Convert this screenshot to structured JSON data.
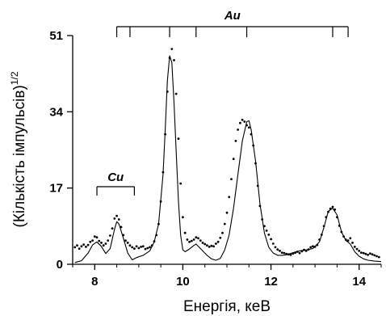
{
  "chart_data": {
    "type": "line",
    "title": "",
    "xlabel": "Енергія, кеВ",
    "ylabel_main": "(Кількість імпульсів)",
    "ylabel_sup": "1/2",
    "xlim": [
      7.5,
      14.5
    ],
    "ylim": [
      0,
      51
    ],
    "xticks": [
      8,
      10,
      12,
      14
    ],
    "xtick_labels": [
      "8",
      "10",
      "12",
      "14"
    ],
    "yticks": [
      0,
      17,
      34,
      51
    ],
    "ytick_labels": [
      "0",
      "17",
      "34",
      "51"
    ],
    "grid": false,
    "colors": {
      "axis": "#000000",
      "series": "#000000"
    },
    "annotations": [
      {
        "label": "Cu",
        "lines": [
          8.05,
          8.9
        ]
      },
      {
        "label": "Au",
        "lines": [
          8.5,
          8.8,
          9.7,
          10.3,
          11.45,
          13.4,
          13.75
        ]
      }
    ],
    "series": [
      {
        "style": "line",
        "x": [
          7.55,
          7.7,
          7.85,
          7.95,
          8.05,
          8.15,
          8.25,
          8.35,
          8.45,
          8.5,
          8.55,
          8.65,
          8.75,
          8.85,
          8.95,
          9.1,
          9.25,
          9.35,
          9.45,
          9.55,
          9.6,
          9.65,
          9.7,
          9.75,
          9.8,
          9.85,
          9.9,
          9.95,
          10.0,
          10.05,
          10.15,
          10.25,
          10.3,
          10.35,
          10.45,
          10.55,
          10.65,
          10.75,
          10.85,
          10.95,
          11.05,
          11.15,
          11.25,
          11.35,
          11.45,
          11.5,
          11.55,
          11.65,
          11.75,
          11.85,
          11.95,
          12.05,
          12.15,
          12.25,
          12.35,
          12.5,
          12.65,
          12.8,
          12.95,
          13.1,
          13.2,
          13.3,
          13.4,
          13.5,
          13.6,
          13.7,
          13.8,
          13.9,
          14.0,
          14.1,
          14.2,
          14.35,
          14.5
        ],
        "y": [
          0.4,
          0.8,
          2.5,
          4.3,
          5.0,
          4.0,
          2.4,
          3.5,
          7.8,
          9.5,
          9.0,
          5.8,
          2.5,
          1.0,
          1.5,
          2.0,
          3.0,
          5.0,
          9.0,
          20.0,
          30.0,
          41.0,
          46.5,
          45.0,
          36.0,
          25.0,
          14.0,
          6.5,
          3.2,
          2.8,
          3.4,
          4.2,
          4.5,
          4.0,
          3.0,
          2.0,
          1.2,
          0.9,
          1.3,
          3.2,
          6.5,
          12.5,
          20.0,
          27.5,
          31.8,
          32.0,
          30.0,
          23.0,
          13.5,
          7.0,
          3.8,
          2.5,
          2.0,
          2.0,
          2.1,
          2.6,
          3.0,
          3.2,
          3.5,
          5.0,
          8.2,
          11.8,
          12.5,
          11.0,
          7.2,
          5.3,
          4.5,
          2.8,
          1.8,
          1.2,
          0.9,
          0.7,
          0.6
        ]
      },
      {
        "style": "points",
        "x": [
          7.55,
          7.6,
          7.65,
          7.7,
          7.75,
          7.8,
          7.85,
          7.9,
          7.95,
          8.0,
          8.05,
          8.1,
          8.15,
          8.2,
          8.25,
          8.3,
          8.35,
          8.4,
          8.45,
          8.5,
          8.55,
          8.6,
          8.65,
          8.7,
          8.75,
          8.8,
          8.85,
          8.9,
          8.95,
          9.0,
          9.05,
          9.1,
          9.15,
          9.2,
          9.25,
          9.3,
          9.35,
          9.4,
          9.45,
          9.5,
          9.55,
          9.6,
          9.65,
          9.7,
          9.75,
          9.8,
          9.85,
          9.9,
          9.95,
          10.0,
          10.05,
          10.1,
          10.15,
          10.2,
          10.25,
          10.3,
          10.35,
          10.4,
          10.45,
          10.5,
          10.55,
          10.6,
          10.65,
          10.7,
          10.75,
          10.8,
          10.85,
          10.9,
          10.95,
          11.0,
          11.05,
          11.1,
          11.15,
          11.2,
          11.25,
          11.3,
          11.35,
          11.4,
          11.45,
          11.5,
          11.55,
          11.6,
          11.65,
          11.7,
          11.75,
          11.8,
          11.85,
          11.9,
          11.95,
          12.0,
          12.05,
          12.1,
          12.15,
          12.2,
          12.25,
          12.3,
          12.35,
          12.4,
          12.45,
          12.5,
          12.55,
          12.6,
          12.65,
          12.7,
          12.75,
          12.8,
          12.85,
          12.9,
          12.95,
          13.0,
          13.05,
          13.1,
          13.15,
          13.2,
          13.25,
          13.3,
          13.35,
          13.4,
          13.45,
          13.5,
          13.55,
          13.6,
          13.65,
          13.7,
          13.75,
          13.8,
          13.85,
          13.9,
          13.95,
          14.0,
          14.05,
          14.1,
          14.15,
          14.2,
          14.25,
          14.3,
          14.35,
          14.4,
          14.45
        ],
        "y": [
          3.8,
          4.2,
          3.5,
          4.0,
          4.4,
          3.9,
          4.3,
          5.0,
          5.3,
          6.2,
          6.0,
          5.2,
          4.8,
          4.2,
          4.6,
          5.3,
          6.4,
          8.0,
          10.2,
          10.8,
          10.0,
          8.3,
          6.5,
          5.3,
          4.8,
          4.2,
          3.8,
          3.5,
          4.0,
          3.6,
          3.9,
          4.0,
          3.4,
          3.6,
          3.8,
          4.2,
          5.1,
          6.5,
          9.0,
          14.0,
          20.5,
          29.0,
          38.5,
          46.0,
          48.0,
          45.5,
          38.0,
          28.0,
          18.0,
          10.5,
          7.0,
          5.5,
          5.0,
          5.2,
          5.5,
          6.0,
          5.8,
          5.3,
          4.8,
          4.5,
          4.2,
          3.9,
          4.1,
          4.0,
          4.6,
          5.0,
          5.9,
          7.0,
          9.0,
          11.5,
          15.0,
          19.0,
          23.5,
          27.5,
          30.0,
          31.5,
          32.2,
          31.8,
          31.0,
          30.5,
          29.0,
          26.5,
          22.5,
          17.5,
          13.0,
          10.0,
          8.5,
          7.5,
          6.6,
          5.6,
          4.6,
          3.8,
          3.3,
          3.0,
          2.6,
          2.5,
          2.3,
          2.2,
          2.1,
          2.4,
          2.6,
          2.8,
          2.5,
          2.9,
          3.2,
          3.0,
          3.3,
          3.8,
          4.0,
          3.9,
          4.3,
          5.5,
          6.6,
          8.5,
          10.5,
          11.7,
          12.4,
          12.8,
          12.2,
          10.5,
          8.6,
          7.2,
          6.2,
          5.5,
          5.3,
          5.8,
          4.8,
          3.9,
          3.4,
          3.0,
          2.6,
          2.5,
          2.3,
          2.1,
          2.4,
          2.2,
          2.0,
          1.8,
          1.6
        ]
      }
    ]
  }
}
